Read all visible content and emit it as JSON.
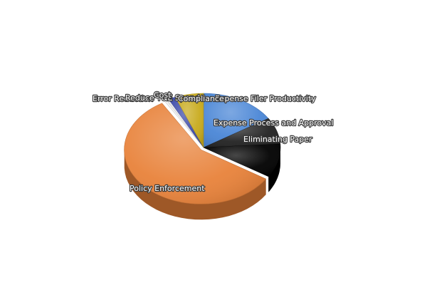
{
  "chart_data": {
    "type": "pie",
    "style": "3d-exploded",
    "slices": [
      {
        "label": "Expense Filer Productivity",
        "value": 16,
        "color": "#4a86d6"
      },
      {
        "label": "Expense Process and Approval",
        "value": 8,
        "color": "#222222"
      },
      {
        "label": "Eliminating Paper",
        "value": 10,
        "color": "#000000"
      },
      {
        "label": "Policy Enforcement",
        "value": 57.5,
        "color": "#e8823a"
      },
      {
        "label": "Error Reduction",
        "value": 0.5,
        "color": "#f1f1f1"
      },
      {
        "label": "Reduce T&E Spend",
        "value": 0.5,
        "color": "#e7e7e7"
      },
      {
        "label": "Cost",
        "value": 1.5,
        "color": "#3a48a8"
      },
      {
        "label": "Compliance",
        "value": 6,
        "color": "#c8aa1c"
      }
    ]
  }
}
